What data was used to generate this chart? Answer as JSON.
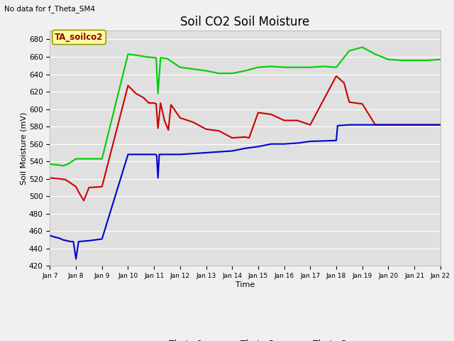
{
  "title": "Soil CO2 Soil Moisture",
  "xlabel": "Time",
  "ylabel": "Soil Moisture (mV)",
  "note": "No data for f_Theta_SM4",
  "legend_label": "TA_soilco2",
  "ylim": [
    420,
    690
  ],
  "yticks": [
    420,
    440,
    460,
    480,
    500,
    520,
    540,
    560,
    580,
    600,
    620,
    640,
    660,
    680
  ],
  "xlim": [
    0,
    15
  ],
  "xtick_labels": [
    "Jan 7",
    "Jan 8",
    "Jan 9",
    "Jan 10",
    "Jan 11",
    "Jan 12",
    "Jan 13",
    "Jan 14",
    "Jan 15",
    "Jan 16",
    "Jan 17",
    "Jan 18",
    "Jan 19",
    "Jan 20",
    "Jan 21",
    "Jan 22"
  ],
  "xtick_positions": [
    0,
    1,
    2,
    3,
    4,
    5,
    6,
    7,
    8,
    9,
    10,
    11,
    12,
    13,
    14,
    15
  ],
  "theta1_color": "#cc0000",
  "theta2_color": "#00cc00",
  "theta3_color": "#0000cc",
  "fig_facecolor": "#f0f0f0",
  "ax_facecolor": "#e0e0e0",
  "theta1_x": [
    0,
    0.4,
    0.6,
    0.75,
    0.9,
    1.0,
    1.1,
    1.3,
    1.5,
    2.0,
    3.0,
    3.3,
    3.6,
    3.8,
    4.0,
    4.08,
    4.15,
    4.25,
    4.4,
    4.55,
    4.65,
    5.0,
    5.5,
    6.0,
    6.5,
    7.0,
    7.5,
    7.65,
    8.0,
    8.5,
    9.0,
    9.5,
    10.0,
    11.0,
    11.3,
    11.5,
    12.0,
    12.5,
    13.0,
    13.5,
    14.0,
    14.5,
    15.0
  ],
  "theta1_y": [
    521,
    520,
    519,
    516,
    513,
    511,
    505,
    495,
    510,
    511,
    627,
    618,
    613,
    607,
    607,
    606,
    578,
    607,
    587,
    576,
    605,
    590,
    585,
    577,
    575,
    567,
    568,
    567,
    596,
    594,
    587,
    587,
    582,
    638,
    630,
    608,
    606,
    582,
    582,
    582,
    582,
    582,
    582
  ],
  "theta2_x": [
    0,
    0.3,
    0.5,
    0.7,
    1.0,
    1.2,
    1.5,
    2.0,
    3.0,
    3.3,
    3.5,
    3.7,
    4.0,
    4.08,
    4.15,
    4.25,
    4.5,
    5.0,
    5.5,
    6.0,
    6.5,
    7.0,
    7.5,
    8.0,
    8.5,
    9.0,
    9.5,
    10.0,
    10.5,
    11.0,
    11.5,
    12.0,
    12.5,
    13.0,
    13.5,
    14.0,
    14.5,
    15.0
  ],
  "theta2_y": [
    537,
    536,
    535,
    537,
    543,
    543,
    543,
    543,
    663,
    662,
    661,
    660,
    659,
    659,
    618,
    659,
    658,
    648,
    646,
    644,
    641,
    641,
    644,
    648,
    649,
    648,
    648,
    648,
    649,
    648,
    667,
    671,
    663,
    657,
    656,
    656,
    656,
    657
  ],
  "theta3_x": [
    0,
    0.2,
    0.35,
    0.5,
    0.65,
    0.8,
    0.9,
    1.0,
    1.1,
    1.5,
    2.0,
    3.0,
    3.5,
    4.0,
    4.05,
    4.1,
    4.15,
    4.2,
    4.5,
    5.0,
    5.5,
    6.0,
    6.5,
    7.0,
    7.5,
    8.0,
    8.5,
    9.0,
    9.5,
    10.0,
    11.0,
    11.05,
    11.5,
    12.0,
    12.5,
    13.0,
    13.5,
    14.0,
    14.5,
    15.0
  ],
  "theta3_y": [
    455,
    453,
    452,
    450,
    449,
    448,
    448,
    428,
    448,
    449,
    451,
    548,
    548,
    548,
    548,
    547,
    521,
    548,
    548,
    548,
    549,
    550,
    551,
    552,
    555,
    557,
    560,
    560,
    561,
    563,
    564,
    581,
    582,
    582,
    582,
    582,
    582,
    582,
    582,
    582
  ]
}
